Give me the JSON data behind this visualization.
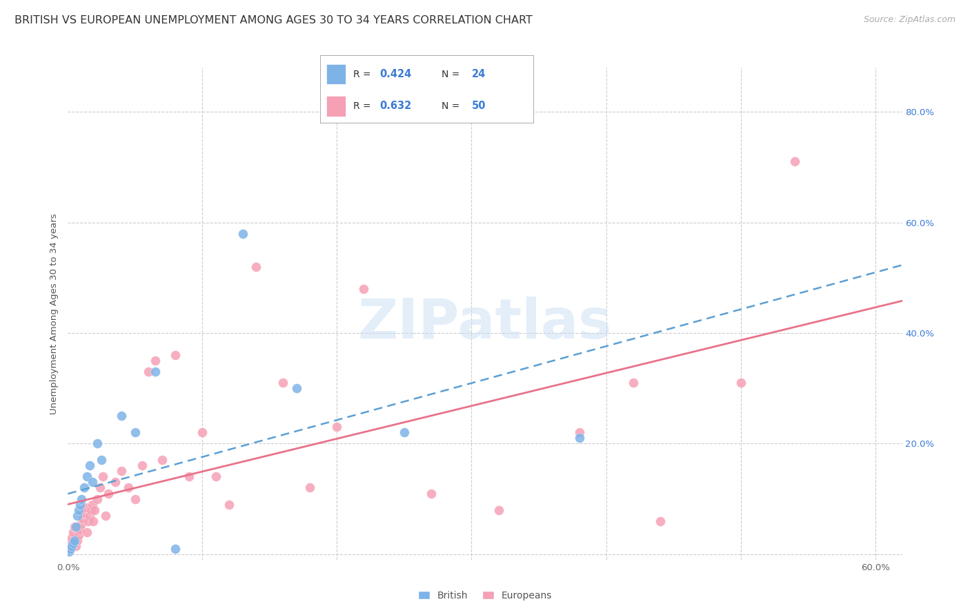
{
  "title": "BRITISH VS EUROPEAN UNEMPLOYMENT AMONG AGES 30 TO 34 YEARS CORRELATION CHART",
  "source": "Source: ZipAtlas.com",
  "ylabel": "Unemployment Among Ages 30 to 34 years",
  "xlim": [
    0.0,
    0.62
  ],
  "ylim": [
    -0.01,
    0.88
  ],
  "xticks": [
    0.0,
    0.1,
    0.2,
    0.3,
    0.4,
    0.5,
    0.6
  ],
  "xtick_labels": [
    "0.0%",
    "",
    "",
    "",
    "",
    "",
    "60.0%"
  ],
  "yticks": [
    0.0,
    0.2,
    0.4,
    0.6,
    0.8
  ],
  "right_ytick_labels": [
    "20.0%",
    "40.0%",
    "60.0%",
    "80.0%"
  ],
  "right_ytick_positions": [
    0.2,
    0.4,
    0.6,
    0.8
  ],
  "british_R": 0.424,
  "british_N": 24,
  "european_R": 0.632,
  "european_N": 50,
  "british_color": "#7eb3e8",
  "european_color": "#f5a0b5",
  "british_line_color": "#5a9fd4",
  "european_line_color": "#e8728a",
  "legend_text_color": "#3a7bd5",
  "title_fontsize": 11.5,
  "source_fontsize": 9,
  "watermark": "ZIPatlas",
  "background_color": "#ffffff",
  "grid_color": "#cccccc",
  "british_x": [
    0.001,
    0.002,
    0.003,
    0.004,
    0.005,
    0.006,
    0.007,
    0.008,
    0.009,
    0.01,
    0.012,
    0.014,
    0.016,
    0.018,
    0.022,
    0.025,
    0.04,
    0.05,
    0.065,
    0.08,
    0.13,
    0.17,
    0.25,
    0.38
  ],
  "british_y": [
    0.005,
    0.01,
    0.015,
    0.02,
    0.025,
    0.05,
    0.07,
    0.08,
    0.09,
    0.1,
    0.12,
    0.14,
    0.16,
    0.13,
    0.2,
    0.17,
    0.25,
    0.22,
    0.33,
    0.01,
    0.58,
    0.3,
    0.22,
    0.21
  ],
  "european_x": [
    0.001,
    0.002,
    0.003,
    0.004,
    0.005,
    0.006,
    0.007,
    0.008,
    0.009,
    0.01,
    0.011,
    0.012,
    0.013,
    0.014,
    0.015,
    0.016,
    0.017,
    0.018,
    0.019,
    0.02,
    0.022,
    0.024,
    0.026,
    0.028,
    0.03,
    0.035,
    0.04,
    0.045,
    0.05,
    0.055,
    0.06,
    0.065,
    0.07,
    0.08,
    0.09,
    0.1,
    0.11,
    0.12,
    0.14,
    0.16,
    0.18,
    0.2,
    0.22,
    0.27,
    0.32,
    0.38,
    0.42,
    0.44,
    0.5,
    0.54
  ],
  "european_y": [
    0.01,
    0.02,
    0.03,
    0.04,
    0.05,
    0.015,
    0.025,
    0.035,
    0.045,
    0.055,
    0.065,
    0.075,
    0.085,
    0.04,
    0.06,
    0.07,
    0.08,
    0.09,
    0.06,
    0.08,
    0.1,
    0.12,
    0.14,
    0.07,
    0.11,
    0.13,
    0.15,
    0.12,
    0.1,
    0.16,
    0.33,
    0.35,
    0.17,
    0.36,
    0.14,
    0.22,
    0.14,
    0.09,
    0.52,
    0.31,
    0.12,
    0.23,
    0.48,
    0.11,
    0.08,
    0.22,
    0.31,
    0.06,
    0.31,
    0.71
  ]
}
